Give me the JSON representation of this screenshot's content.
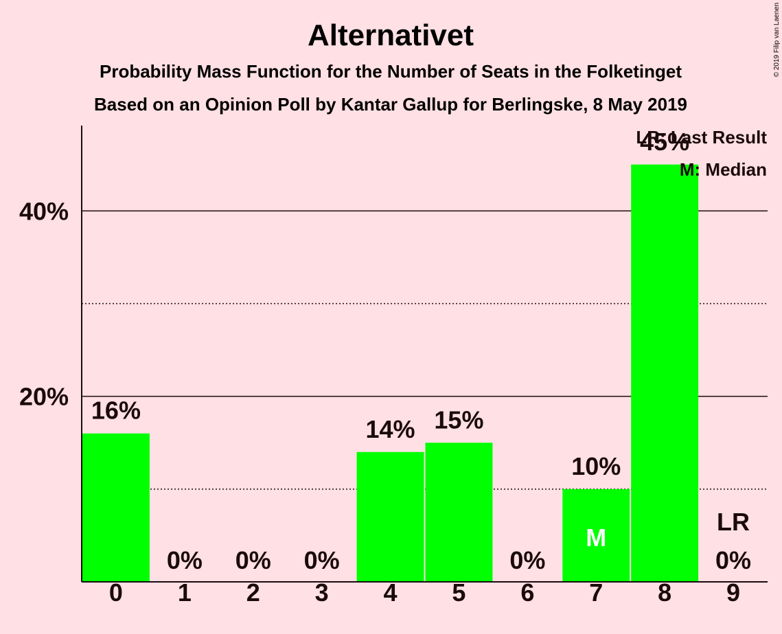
{
  "chart_data": {
    "type": "bar",
    "title": "Alternativet",
    "subtitle_1": "Probability Mass Function for the Number of Seats in the Folketinget",
    "subtitle_2": "Based on an Opinion Poll by Kantar Gallup for Berlingske, 8 May 2019",
    "categories": [
      "0",
      "1",
      "2",
      "3",
      "4",
      "5",
      "6",
      "7",
      "8",
      "9"
    ],
    "values": [
      16,
      0,
      0,
      0,
      14,
      15,
      0,
      10,
      45,
      0
    ],
    "value_labels": [
      "16%",
      "0%",
      "0%",
      "0%",
      "14%",
      "15%",
      "0%",
      "10%",
      "45%",
      "0%"
    ],
    "ylim": [
      0,
      50
    ],
    "yticks": [
      20,
      40
    ],
    "ytick_labels": [
      "20%",
      "40%"
    ],
    "minor_gridlines": [
      10,
      30
    ],
    "median_index": 7,
    "median_marker": "M",
    "last_result_index": 9,
    "last_result_marker": "LR",
    "legend": [
      "LR: Last Result",
      "M: Median"
    ],
    "legend_position": "top-right",
    "copyright": "© 2019 Filip van Laenen",
    "bar_color": "#00ff00",
    "background_color": "#ffe0e4",
    "text_color": "#1a0a0c"
  }
}
